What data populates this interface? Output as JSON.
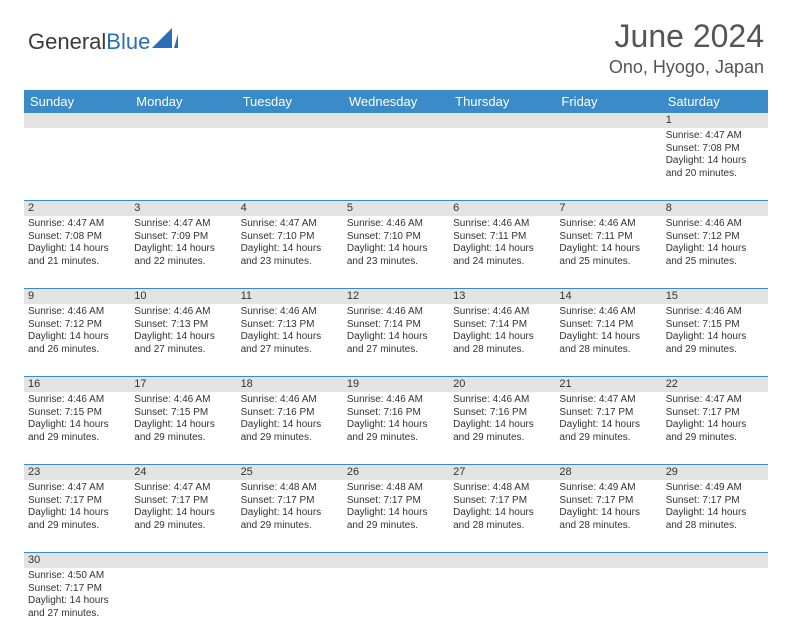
{
  "brand": {
    "name_a": "General",
    "name_b": "Blue"
  },
  "title": "June 2024",
  "location": "Ono, Hyogo, Japan",
  "colors": {
    "header_bg": "#3b8bc9",
    "daynum_bg": "#e3e3e3",
    "text": "#333333",
    "title_text": "#555555",
    "brand_blue": "#2a6fb5"
  },
  "day_names": [
    "Sunday",
    "Monday",
    "Tuesday",
    "Wednesday",
    "Thursday",
    "Friday",
    "Saturday"
  ],
  "weeks": [
    {
      "nums": [
        "",
        "",
        "",
        "",
        "",
        "",
        "1"
      ],
      "cells": [
        null,
        null,
        null,
        null,
        null,
        null,
        {
          "sunrise": "4:47 AM",
          "sunset": "7:08 PM",
          "daylight": "14 hours and 20 minutes."
        }
      ]
    },
    {
      "nums": [
        "2",
        "3",
        "4",
        "5",
        "6",
        "7",
        "8"
      ],
      "cells": [
        {
          "sunrise": "4:47 AM",
          "sunset": "7:08 PM",
          "daylight": "14 hours and 21 minutes."
        },
        {
          "sunrise": "4:47 AM",
          "sunset": "7:09 PM",
          "daylight": "14 hours and 22 minutes."
        },
        {
          "sunrise": "4:47 AM",
          "sunset": "7:10 PM",
          "daylight": "14 hours and 23 minutes."
        },
        {
          "sunrise": "4:46 AM",
          "sunset": "7:10 PM",
          "daylight": "14 hours and 23 minutes."
        },
        {
          "sunrise": "4:46 AM",
          "sunset": "7:11 PM",
          "daylight": "14 hours and 24 minutes."
        },
        {
          "sunrise": "4:46 AM",
          "sunset": "7:11 PM",
          "daylight": "14 hours and 25 minutes."
        },
        {
          "sunrise": "4:46 AM",
          "sunset": "7:12 PM",
          "daylight": "14 hours and 25 minutes."
        }
      ]
    },
    {
      "nums": [
        "9",
        "10",
        "11",
        "12",
        "13",
        "14",
        "15"
      ],
      "cells": [
        {
          "sunrise": "4:46 AM",
          "sunset": "7:12 PM",
          "daylight": "14 hours and 26 minutes."
        },
        {
          "sunrise": "4:46 AM",
          "sunset": "7:13 PM",
          "daylight": "14 hours and 27 minutes."
        },
        {
          "sunrise": "4:46 AM",
          "sunset": "7:13 PM",
          "daylight": "14 hours and 27 minutes."
        },
        {
          "sunrise": "4:46 AM",
          "sunset": "7:14 PM",
          "daylight": "14 hours and 27 minutes."
        },
        {
          "sunrise": "4:46 AM",
          "sunset": "7:14 PM",
          "daylight": "14 hours and 28 minutes."
        },
        {
          "sunrise": "4:46 AM",
          "sunset": "7:14 PM",
          "daylight": "14 hours and 28 minutes."
        },
        {
          "sunrise": "4:46 AM",
          "sunset": "7:15 PM",
          "daylight": "14 hours and 29 minutes."
        }
      ]
    },
    {
      "nums": [
        "16",
        "17",
        "18",
        "19",
        "20",
        "21",
        "22"
      ],
      "cells": [
        {
          "sunrise": "4:46 AM",
          "sunset": "7:15 PM",
          "daylight": "14 hours and 29 minutes."
        },
        {
          "sunrise": "4:46 AM",
          "sunset": "7:15 PM",
          "daylight": "14 hours and 29 minutes."
        },
        {
          "sunrise": "4:46 AM",
          "sunset": "7:16 PM",
          "daylight": "14 hours and 29 minutes."
        },
        {
          "sunrise": "4:46 AM",
          "sunset": "7:16 PM",
          "daylight": "14 hours and 29 minutes."
        },
        {
          "sunrise": "4:46 AM",
          "sunset": "7:16 PM",
          "daylight": "14 hours and 29 minutes."
        },
        {
          "sunrise": "4:47 AM",
          "sunset": "7:17 PM",
          "daylight": "14 hours and 29 minutes."
        },
        {
          "sunrise": "4:47 AM",
          "sunset": "7:17 PM",
          "daylight": "14 hours and 29 minutes."
        }
      ]
    },
    {
      "nums": [
        "23",
        "24",
        "25",
        "26",
        "27",
        "28",
        "29"
      ],
      "cells": [
        {
          "sunrise": "4:47 AM",
          "sunset": "7:17 PM",
          "daylight": "14 hours and 29 minutes."
        },
        {
          "sunrise": "4:47 AM",
          "sunset": "7:17 PM",
          "daylight": "14 hours and 29 minutes."
        },
        {
          "sunrise": "4:48 AM",
          "sunset": "7:17 PM",
          "daylight": "14 hours and 29 minutes."
        },
        {
          "sunrise": "4:48 AM",
          "sunset": "7:17 PM",
          "daylight": "14 hours and 29 minutes."
        },
        {
          "sunrise": "4:48 AM",
          "sunset": "7:17 PM",
          "daylight": "14 hours and 28 minutes."
        },
        {
          "sunrise": "4:49 AM",
          "sunset": "7:17 PM",
          "daylight": "14 hours and 28 minutes."
        },
        {
          "sunrise": "4:49 AM",
          "sunset": "7:17 PM",
          "daylight": "14 hours and 28 minutes."
        }
      ]
    },
    {
      "nums": [
        "30",
        "",
        "",
        "",
        "",
        "",
        ""
      ],
      "cells": [
        {
          "sunrise": "4:50 AM",
          "sunset": "7:17 PM",
          "daylight": "14 hours and 27 minutes."
        },
        null,
        null,
        null,
        null,
        null,
        null
      ]
    }
  ],
  "labels": {
    "sunrise": "Sunrise:",
    "sunset": "Sunset:",
    "daylight": "Daylight:"
  }
}
